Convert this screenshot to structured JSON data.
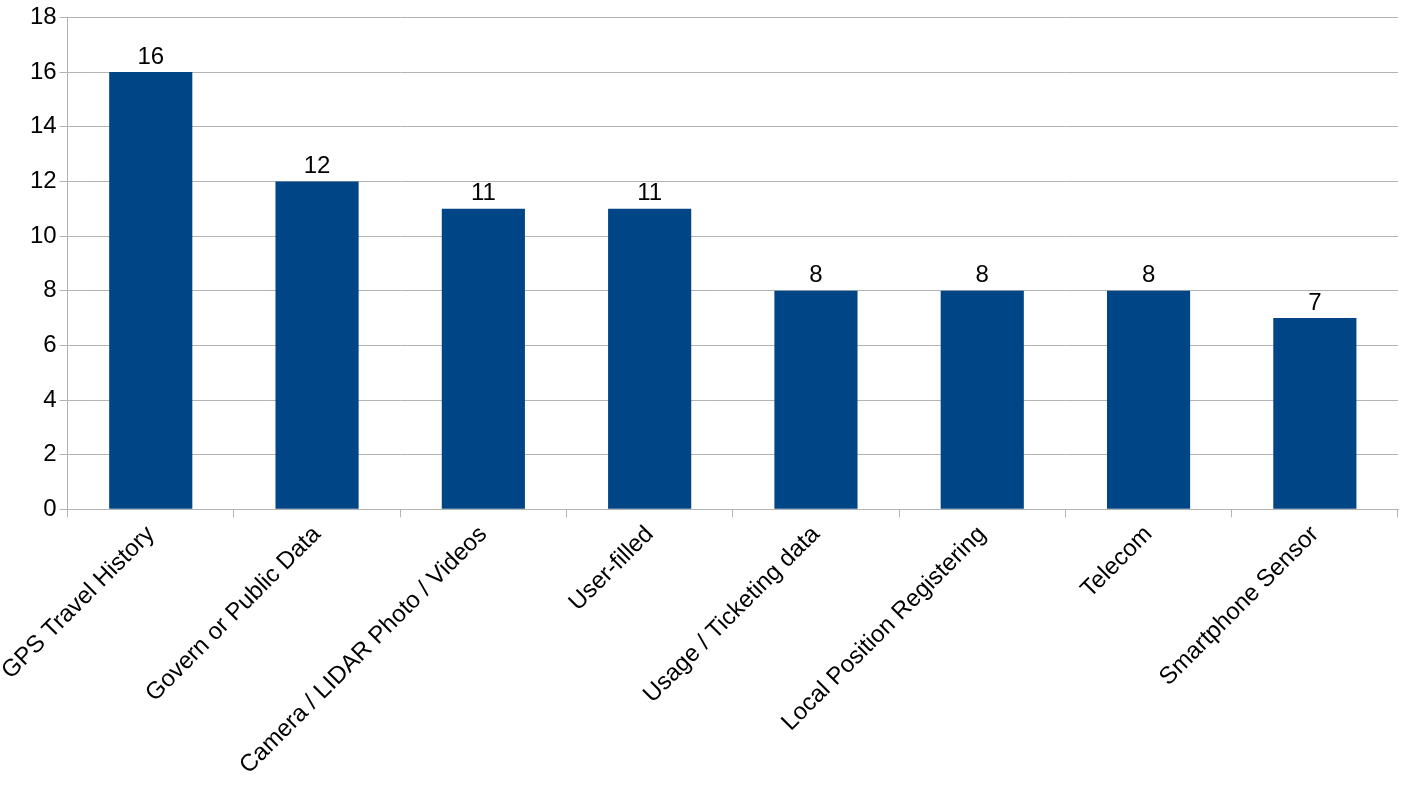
{
  "chart_data": {
    "type": "bar",
    "categories": [
      "GPS Travel History",
      "Govern or Public Data",
      "Camera / LIDAR Photo / Videos",
      "User-filled",
      "Usage / Ticketing data",
      "Local Position Registering",
      "Telecom",
      "Smartphone Sensor"
    ],
    "values": [
      16,
      12,
      11,
      11,
      8,
      8,
      8,
      7
    ],
    "color": "#004586",
    "ylim": [
      0,
      18
    ],
    "yticks": [
      0,
      2,
      4,
      6,
      8,
      10,
      12,
      14,
      16,
      18
    ],
    "grid": true,
    "data_labels": true
  }
}
